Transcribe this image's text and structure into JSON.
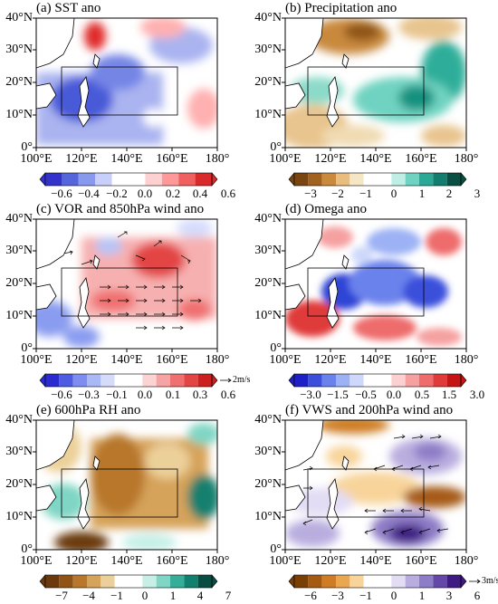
{
  "lat_labels": [
    "40°N",
    "30°N",
    "20°N",
    "10°N",
    "0°"
  ],
  "lon_labels": [
    "100°E",
    "120°E",
    "140°E",
    "160°E",
    "180°"
  ],
  "panels": [
    {
      "id": "a",
      "title": "(a) SST ano",
      "colors": [
        "#3333cc",
        "#5566dd",
        "#8899ee",
        "#c8cffa",
        "#ffffff",
        "#ffffff",
        "#ffd0d0",
        "#ff9999",
        "#f06060",
        "#d92b2b"
      ],
      "ticks": [
        "−0.6",
        "−0.4",
        "−0.2",
        "0.0",
        "0.2",
        "0.4",
        "0.6"
      ],
      "reference_vector": ""
    },
    {
      "id": "b",
      "title": "(b) Precipitation ano",
      "colors": [
        "#7a4510",
        "#a0621e",
        "#c98a3e",
        "#e8bd7e",
        "#f5e6c4",
        "#ffffff",
        "#ffffff",
        "#bfeee5",
        "#6fd3c1",
        "#2aa997",
        "#137e6e",
        "#0a4f44"
      ],
      "ticks": [
        "−3",
        "−2",
        "−1",
        "0",
        "1",
        "2",
        "3"
      ],
      "reference_vector": ""
    },
    {
      "id": "c",
      "title": "(c) VOR and 850hPa wind ano",
      "colors": [
        "#2a2ad0",
        "#4d5ce0",
        "#7d8ef0",
        "#aab8f6",
        "#d5dcfb",
        "#ffffff",
        "#ffffff",
        "#fcd3d3",
        "#f7a3a3",
        "#f07070",
        "#e34444",
        "#cc1f1f"
      ],
      "ticks": [
        "−0.6",
        "−0.3",
        "−0.1",
        "0.0",
        "0.1",
        "0.3",
        "0.6"
      ],
      "reference_vector": "2m/s"
    },
    {
      "id": "d",
      "title": "(d) Omega ano",
      "colors": [
        "#1f1fc8",
        "#3b4fdb",
        "#6a82ec",
        "#9db2f5",
        "#cdd8fb",
        "#ffffff",
        "#ffffff",
        "#fcd0d0",
        "#f6a0a0",
        "#ee6c6c",
        "#e03a3a",
        "#c41414"
      ],
      "ticks": [
        "−3.0",
        "−1.5",
        "−0.5",
        "0.0",
        "0.5",
        "1.5",
        "3.0"
      ],
      "reference_vector": ""
    },
    {
      "id": "e",
      "title": "(e) 600hPa RH ano",
      "colors": [
        "#6b3a0c",
        "#8f5315",
        "#b8772a",
        "#d6a35a",
        "#ecd09a",
        "#ffffff",
        "#ffffff",
        "#c6f0e6",
        "#7fd6c4",
        "#35ad98",
        "#12806e",
        "#094d42"
      ],
      "ticks": [
        "−7",
        "−4",
        "−1",
        "0",
        "1",
        "4",
        "7"
      ],
      "reference_vector": ""
    },
    {
      "id": "f",
      "title": "(f) VWS and 200hPa wind ano",
      "colors": [
        "#7a3f05",
        "#a55a12",
        "#cf7d24",
        "#eba650",
        "#f8d49a",
        "#ffffff",
        "#ffffff",
        "#e2dcf4",
        "#b9addf",
        "#8d7cc6",
        "#6448a8",
        "#3e1a82"
      ],
      "ticks": [
        "−6",
        "−3",
        "−1",
        "0",
        "1",
        "3",
        "6"
      ],
      "reference_vector": "3m/s"
    }
  ]
}
